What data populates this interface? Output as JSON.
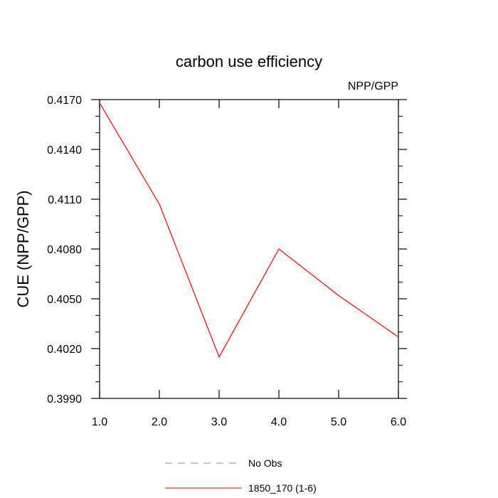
{
  "chart_data": {
    "type": "line",
    "title": "carbon use efficiency",
    "subtitle": "NPP/GPP",
    "xlabel": "",
    "ylabel": "CUE  (NPP/GPP)",
    "xlim": [
      1.0,
      6.0
    ],
    "ylim": [
      0.399,
      0.417
    ],
    "x_ticks": [
      "1.0",
      "2.0",
      "3.0",
      "4.0",
      "5.0",
      "6.0"
    ],
    "y_ticks": [
      "0.3990",
      "0.4020",
      "0.4050",
      "0.4080",
      "0.4110",
      "0.4140",
      "0.4170"
    ],
    "grid": false,
    "legend_position": "bottom",
    "series": [
      {
        "name": "No Obs",
        "color": "#8080d0",
        "style": "dashed",
        "x": [],
        "y": []
      },
      {
        "name": "1850_170 (1-6)",
        "color": "#ff0000",
        "style": "solid",
        "x": [
          1.0,
          2.0,
          3.0,
          4.0,
          5.0,
          6.0
        ],
        "y": [
          0.4168,
          0.4107,
          0.4015,
          0.408,
          0.4052,
          0.4027
        ]
      }
    ]
  }
}
